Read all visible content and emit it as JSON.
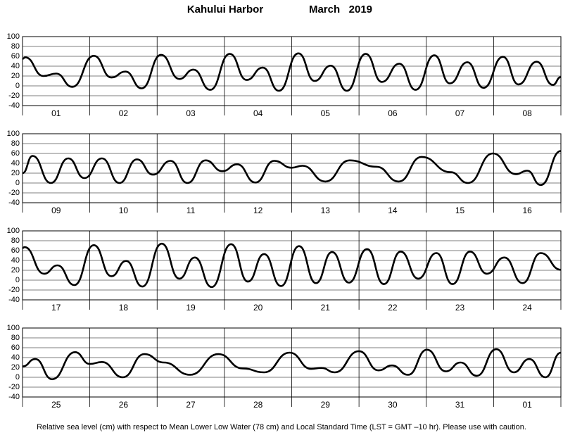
{
  "title": "Kahului Harbor",
  "subtitle": "March   2019",
  "footnote": "Relative sea level (cm) with respect to Mean Lower Low Water (78 cm) and Local Standard Time (LST = GMT –10 hr). Please use with caution.",
  "chart_data": [
    {
      "type": "line",
      "categories": [
        "01",
        "02",
        "03",
        "04",
        "05",
        "06",
        "07",
        "08"
      ],
      "xlim": [
        0,
        8
      ],
      "xticks": [
        0,
        1,
        2,
        3,
        4,
        5,
        6,
        7,
        8
      ],
      "ylim": [
        -40,
        100
      ],
      "yticks": [
        -40,
        -20,
        0,
        20,
        40,
        60,
        80,
        100
      ],
      "grid": true,
      "x": [
        0,
        0.04,
        0.31,
        0.5,
        0.74,
        1.06,
        1.32,
        1.53,
        1.77,
        2.06,
        2.33,
        2.54,
        2.79,
        3.08,
        3.33,
        3.57,
        3.81,
        4.1,
        4.34,
        4.58,
        4.82,
        5.1,
        5.34,
        5.6,
        5.84,
        6.12,
        6.35,
        6.61,
        6.85,
        7.14,
        7.37,
        7.64,
        7.88,
        8
      ],
      "series": [
        {
          "color": "#000000",
          "values": [
            55,
            58,
            20,
            25,
            -2,
            61,
            17,
            29,
            -5,
            63,
            14,
            33,
            -8,
            65,
            12,
            37,
            -10,
            66,
            10,
            41,
            -10,
            65,
            8,
            45,
            -8,
            62,
            5,
            48,
            -4,
            59,
            3,
            49,
            2,
            18
          ]
        }
      ]
    },
    {
      "type": "line",
      "categories": [
        "09",
        "10",
        "11",
        "12",
        "13",
        "14",
        "15",
        "16"
      ],
      "xlim": [
        0,
        8
      ],
      "xticks": [
        0,
        1,
        2,
        3,
        4,
        5,
        6,
        7,
        8
      ],
      "ylim": [
        -40,
        100
      ],
      "yticks": [
        -40,
        -20,
        0,
        20,
        40,
        60,
        80,
        100
      ],
      "grid": true,
      "x": [
        0,
        0.15,
        0.42,
        0.68,
        0.92,
        1.18,
        1.44,
        1.7,
        1.94,
        2.2,
        2.45,
        2.72,
        2.97,
        3.19,
        3.46,
        3.74,
        4.0,
        4.16,
        4.5,
        4.86,
        5.26,
        5.59,
        5.93,
        6.36,
        6.62,
        6.99,
        7.33,
        7.5,
        7.7,
        8
      ],
      "series": [
        {
          "color": "#000000",
          "values": [
            20,
            55,
            0,
            50,
            10,
            50,
            0,
            48,
            17,
            45,
            0,
            46,
            24,
            38,
            1,
            45,
            31,
            35,
            3,
            46,
            33,
            3,
            53,
            22,
            0,
            60,
            18,
            25,
            -4,
            65
          ]
        }
      ]
    },
    {
      "type": "line",
      "categories": [
        "17",
        "18",
        "19",
        "20",
        "21",
        "22",
        "23",
        "24"
      ],
      "xlim": [
        0,
        8
      ],
      "xticks": [
        0,
        1,
        2,
        3,
        4,
        5,
        6,
        7,
        8
      ],
      "ylim": [
        -40,
        100
      ],
      "yticks": [
        -40,
        -20,
        0,
        20,
        40,
        60,
        80,
        100
      ],
      "grid": true,
      "x": [
        0,
        0.03,
        0.32,
        0.52,
        0.77,
        1.06,
        1.32,
        1.54,
        1.78,
        2.07,
        2.33,
        2.56,
        2.81,
        3.1,
        3.35,
        3.59,
        3.84,
        4.11,
        4.36,
        4.6,
        4.85,
        5.12,
        5.37,
        5.62,
        5.88,
        6.15,
        6.39,
        6.65,
        6.9,
        7.16,
        7.43,
        7.7,
        8
      ],
      "series": [
        {
          "color": "#000000",
          "values": [
            65,
            67,
            13,
            30,
            -10,
            71,
            8,
            39,
            -13,
            74,
            3,
            46,
            -14,
            73,
            -3,
            53,
            -12,
            69,
            -6,
            57,
            -5,
            63,
            -8,
            58,
            3,
            55,
            -8,
            58,
            13,
            46,
            -6,
            55,
            21
          ]
        }
      ]
    },
    {
      "type": "line",
      "categories": [
        "25",
        "26",
        "27",
        "28",
        "29",
        "30",
        "31",
        "01"
      ],
      "xlim": [
        0,
        8
      ],
      "xticks": [
        0,
        1,
        2,
        3,
        4,
        5,
        6,
        7,
        8
      ],
      "ylim": [
        -40,
        100
      ],
      "yticks": [
        -40,
        -20,
        0,
        20,
        40,
        60,
        80,
        100
      ],
      "grid": true,
      "x": [
        0,
        0.19,
        0.44,
        0.78,
        1.0,
        1.18,
        1.49,
        1.81,
        2.1,
        2.49,
        2.91,
        3.27,
        3.59,
        3.97,
        4.29,
        4.44,
        4.64,
        5.0,
        5.29,
        5.49,
        5.73,
        6.01,
        6.29,
        6.51,
        6.75,
        7.04,
        7.3,
        7.53,
        7.77,
        8
      ],
      "series": [
        {
          "color": "#000000",
          "values": [
            22,
            37,
            -4,
            51,
            27,
            31,
            0,
            47,
            30,
            5,
            47,
            18,
            10,
            50,
            17,
            19,
            10,
            53,
            14,
            24,
            5,
            56,
            12,
            30,
            3,
            57,
            10,
            37,
            0,
            50
          ]
        }
      ]
    }
  ]
}
